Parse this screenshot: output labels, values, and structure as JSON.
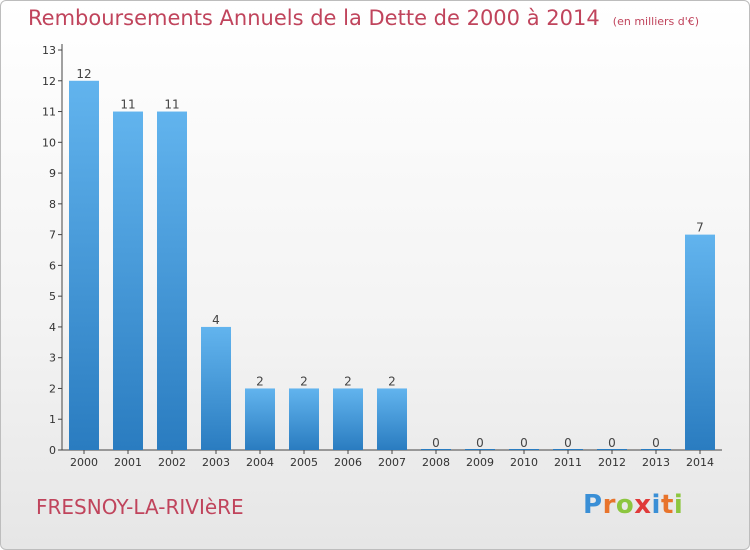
{
  "header": {
    "title": "Remboursements Annuels de la Dette de 2000 à 2014",
    "unit": "(en milliers d'€)"
  },
  "footer": {
    "commune": "FRESNOY-LA-RIVIèRE",
    "logo_letters": [
      "P",
      "r",
      "o",
      "x",
      "i",
      "t",
      "i"
    ],
    "logo_colors": [
      "#3a8fd6",
      "#e8742c",
      "#8cc63f",
      "#e03a3a",
      "#3a8fd6",
      "#e8742c",
      "#8cc63f"
    ]
  },
  "chart_data": {
    "type": "bar",
    "title": "Remboursements Annuels de la Dette de 2000 à 2014",
    "subtitle": "(en milliers d'€)",
    "categories": [
      "2000",
      "2001",
      "2002",
      "2003",
      "2004",
      "2005",
      "2006",
      "2007",
      "2008",
      "2009",
      "2010",
      "2011",
      "2012",
      "2013",
      "2014"
    ],
    "values": [
      12,
      11,
      11,
      4,
      2,
      2,
      2,
      2,
      0,
      0,
      0,
      0,
      0,
      0,
      7
    ],
    "data_labels": [
      "12",
      "11",
      "11",
      "4",
      "2",
      "2",
      "2",
      "2",
      "0",
      "0",
      "0",
      "0",
      "0",
      "0",
      "7"
    ],
    "y_ticks": [
      "0",
      "1",
      "2",
      "3",
      "4",
      "5",
      "6",
      "7",
      "8",
      "9",
      "10",
      "11",
      "12",
      "13"
    ],
    "ylim": [
      0,
      13
    ],
    "grid": false,
    "bar_color_top": "#62b4ee",
    "bar_color_bottom": "#2a7cc0"
  }
}
